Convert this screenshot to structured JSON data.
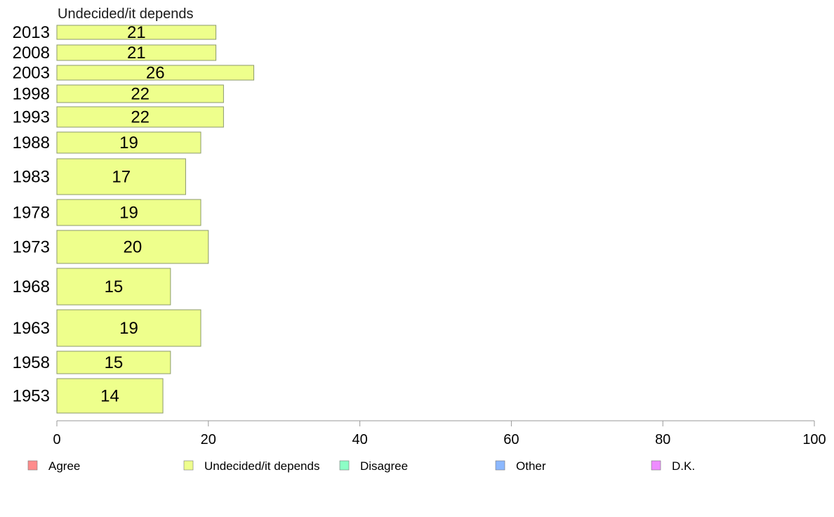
{
  "chart_data": {
    "type": "bar",
    "orientation": "horizontal",
    "title": "Undecided/it depends",
    "categories": [
      "2013",
      "2008",
      "2003",
      "1998",
      "1993",
      "1988",
      "1983",
      "1978",
      "1973",
      "1968",
      "1963",
      "1958",
      "1953"
    ],
    "series": [
      {
        "name": "Undecided/it depends",
        "values": [
          21,
          21,
          26,
          22,
          22,
          19,
          17,
          19,
          20,
          15,
          19,
          15,
          14
        ],
        "color": "#eeff8c"
      }
    ],
    "data_labels": [
      "21",
      "21",
      "26",
      "22",
      "22",
      "19",
      "17",
      "19",
      "20",
      "15",
      "19",
      "15",
      "14"
    ],
    "xlim": [
      0,
      100
    ],
    "xticks": [
      0,
      20,
      40,
      60,
      80,
      100
    ],
    "xtick_labels": [
      "0",
      "20",
      "40",
      "60",
      "80",
      "100"
    ],
    "grid": false,
    "legend": {
      "position": "bottom",
      "items": [
        {
          "label": "Agree",
          "color": "#ff8c8c"
        },
        {
          "label": "Undecided/it depends",
          "color": "#eeff8c"
        },
        {
          "label": "Disagree",
          "color": "#8cffc6"
        },
        {
          "label": "Other",
          "color": "#8cb8ff"
        },
        {
          "label": "D.K.",
          "color": "#ee8cff"
        }
      ]
    }
  }
}
